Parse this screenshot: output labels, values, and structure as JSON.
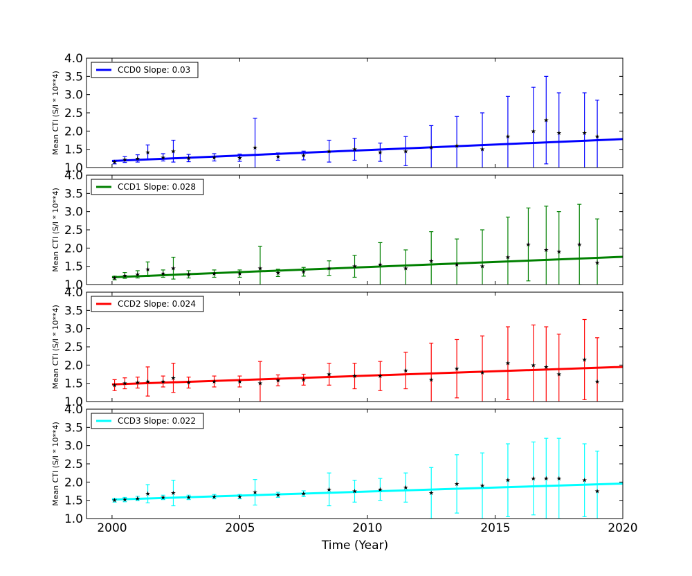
{
  "figure": {
    "xlabel": "Time (Year)",
    "xticks": [
      "2000",
      "2005",
      "2010",
      "2015",
      "2020"
    ]
  },
  "chart_data": [
    {
      "type": "scatter",
      "id": "ccd0",
      "ylabel": "Mean CTI (S/I * 10**4)",
      "xlim": [
        1999,
        2020
      ],
      "ylim": [
        1.0,
        4.0
      ],
      "yticks": [
        "1.0",
        "1.5",
        "2.0",
        "2.5",
        "3.0",
        "3.5",
        "4.0"
      ],
      "legend": {
        "placement": "top-left",
        "label": "CCD0 Slope: 0.03"
      },
      "color": "#0000ff",
      "fit": {
        "slope": 0.03,
        "x": [
          2000,
          2020
        ],
        "y": [
          1.18,
          1.78
        ]
      },
      "points": [
        {
          "x": 2000.1,
          "y": 1.15,
          "err": 0.05
        },
        {
          "x": 2000.5,
          "y": 1.22,
          "err": 0.08
        },
        {
          "x": 2001.0,
          "y": 1.25,
          "err": 0.1
        },
        {
          "x": 2001.4,
          "y": 1.42,
          "err": 0.2
        },
        {
          "x": 2002.0,
          "y": 1.28,
          "err": 0.1
        },
        {
          "x": 2002.4,
          "y": 1.45,
          "err": 0.3
        },
        {
          "x": 2003.0,
          "y": 1.26,
          "err": 0.1
        },
        {
          "x": 2004.0,
          "y": 1.28,
          "err": 0.1
        },
        {
          "x": 2005.0,
          "y": 1.27,
          "err": 0.1
        },
        {
          "x": 2005.6,
          "y": 1.55,
          "err": 0.8
        },
        {
          "x": 2006.5,
          "y": 1.3,
          "err": 0.1
        },
        {
          "x": 2007.5,
          "y": 1.33,
          "err": 0.12
        },
        {
          "x": 2008.5,
          "y": 1.45,
          "err": 0.3
        },
        {
          "x": 2009.5,
          "y": 1.5,
          "err": 0.3
        },
        {
          "x": 2010.5,
          "y": 1.42,
          "err": 0.25
        },
        {
          "x": 2011.5,
          "y": 1.45,
          "err": 0.4
        },
        {
          "x": 2012.5,
          "y": 1.55,
          "err": 0.6
        },
        {
          "x": 2013.5,
          "y": 1.6,
          "err": 0.8
        },
        {
          "x": 2014.5,
          "y": 1.5,
          "err": 1.0
        },
        {
          "x": 2015.5,
          "y": 1.85,
          "err": 1.1
        },
        {
          "x": 2016.5,
          "y": 2.0,
          "err": 1.2
        },
        {
          "x": 2017.0,
          "y": 2.3,
          "err": 1.2
        },
        {
          "x": 2017.5,
          "y": 1.95,
          "err": 1.1
        },
        {
          "x": 2018.5,
          "y": 1.95,
          "err": 1.1
        },
        {
          "x": 2019.0,
          "y": 1.85,
          "err": 1.0
        }
      ]
    },
    {
      "type": "scatter",
      "id": "ccd1",
      "ylabel": "Mean CTI (S/I * 10**4)",
      "xlim": [
        1999,
        2020
      ],
      "ylim": [
        1.0,
        4.0
      ],
      "yticks": [
        "1.0",
        "1.5",
        "2.0",
        "2.5",
        "3.0",
        "3.5",
        "4.0"
      ],
      "legend": {
        "placement": "top-left",
        "label": "CCD1 Slope: 0.028"
      },
      "color": "#008000",
      "fit": {
        "slope": 0.028,
        "x": [
          2000,
          2020
        ],
        "y": [
          1.2,
          1.76
        ]
      },
      "points": [
        {
          "x": 2000.1,
          "y": 1.18,
          "err": 0.05
        },
        {
          "x": 2000.5,
          "y": 1.25,
          "err": 0.08
        },
        {
          "x": 2001.0,
          "y": 1.28,
          "err": 0.1
        },
        {
          "x": 2001.4,
          "y": 1.42,
          "err": 0.2
        },
        {
          "x": 2002.0,
          "y": 1.3,
          "err": 0.1
        },
        {
          "x": 2002.4,
          "y": 1.45,
          "err": 0.3
        },
        {
          "x": 2003.0,
          "y": 1.28,
          "err": 0.1
        },
        {
          "x": 2004.0,
          "y": 1.3,
          "err": 0.1
        },
        {
          "x": 2005.0,
          "y": 1.3,
          "err": 0.1
        },
        {
          "x": 2005.8,
          "y": 1.45,
          "err": 0.6
        },
        {
          "x": 2006.5,
          "y": 1.32,
          "err": 0.1
        },
        {
          "x": 2007.5,
          "y": 1.35,
          "err": 0.12
        },
        {
          "x": 2008.5,
          "y": 1.45,
          "err": 0.2
        },
        {
          "x": 2009.5,
          "y": 1.5,
          "err": 0.3
        },
        {
          "x": 2010.5,
          "y": 1.55,
          "err": 0.6
        },
        {
          "x": 2011.5,
          "y": 1.45,
          "err": 0.5
        },
        {
          "x": 2012.5,
          "y": 1.65,
          "err": 0.8
        },
        {
          "x": 2013.5,
          "y": 1.55,
          "err": 0.7
        },
        {
          "x": 2014.5,
          "y": 1.5,
          "err": 1.0
        },
        {
          "x": 2015.5,
          "y": 1.75,
          "err": 1.1
        },
        {
          "x": 2016.3,
          "y": 2.1,
          "err": 1.0
        },
        {
          "x": 2017.0,
          "y": 1.95,
          "err": 1.2
        },
        {
          "x": 2017.5,
          "y": 1.9,
          "err": 1.1
        },
        {
          "x": 2018.3,
          "y": 2.1,
          "err": 1.1
        },
        {
          "x": 2019.0,
          "y": 1.6,
          "err": 1.2
        }
      ]
    },
    {
      "type": "scatter",
      "id": "ccd2",
      "ylabel": "Mean CTI (S/I * 10**4)",
      "xlim": [
        1999,
        2020
      ],
      "ylim": [
        1.0,
        4.0
      ],
      "yticks": [
        "1.0",
        "1.5",
        "2.0",
        "2.5",
        "3.0",
        "3.5",
        "4.0"
      ],
      "legend": {
        "placement": "top-left",
        "label": "CCD2 Slope: 0.024"
      },
      "color": "#ff0000",
      "fit": {
        "slope": 0.024,
        "x": [
          2000,
          2020
        ],
        "y": [
          1.47,
          1.95
        ]
      },
      "points": [
        {
          "x": 2000.1,
          "y": 1.45,
          "err": 0.15
        },
        {
          "x": 2000.5,
          "y": 1.5,
          "err": 0.15
        },
        {
          "x": 2001.0,
          "y": 1.52,
          "err": 0.15
        },
        {
          "x": 2001.4,
          "y": 1.55,
          "err": 0.4
        },
        {
          "x": 2002.0,
          "y": 1.55,
          "err": 0.15
        },
        {
          "x": 2002.4,
          "y": 1.65,
          "err": 0.4
        },
        {
          "x": 2003.0,
          "y": 1.52,
          "err": 0.15
        },
        {
          "x": 2004.0,
          "y": 1.55,
          "err": 0.15
        },
        {
          "x": 2005.0,
          "y": 1.55,
          "err": 0.15
        },
        {
          "x": 2005.8,
          "y": 1.5,
          "err": 0.6
        },
        {
          "x": 2006.5,
          "y": 1.58,
          "err": 0.15
        },
        {
          "x": 2007.5,
          "y": 1.6,
          "err": 0.15
        },
        {
          "x": 2008.5,
          "y": 1.75,
          "err": 0.3
        },
        {
          "x": 2009.5,
          "y": 1.7,
          "err": 0.35
        },
        {
          "x": 2010.5,
          "y": 1.7,
          "err": 0.4
        },
        {
          "x": 2011.5,
          "y": 1.85,
          "err": 0.5
        },
        {
          "x": 2012.5,
          "y": 1.6,
          "err": 1.0
        },
        {
          "x": 2013.5,
          "y": 1.9,
          "err": 0.8
        },
        {
          "x": 2014.5,
          "y": 1.8,
          "err": 1.0
        },
        {
          "x": 2015.5,
          "y": 2.05,
          "err": 1.0
        },
        {
          "x": 2016.5,
          "y": 2.0,
          "err": 1.1
        },
        {
          "x": 2017.0,
          "y": 1.95,
          "err": 1.1
        },
        {
          "x": 2017.5,
          "y": 1.75,
          "err": 1.1
        },
        {
          "x": 2018.5,
          "y": 2.15,
          "err": 1.1
        },
        {
          "x": 2019.0,
          "y": 1.55,
          "err": 1.2
        }
      ]
    },
    {
      "type": "scatter",
      "id": "ccd3",
      "ylabel": "Mean CTI (S/I * 10**4)",
      "xlim": [
        1999,
        2020
      ],
      "ylim": [
        1.0,
        4.0
      ],
      "yticks": [
        "1.0",
        "1.5",
        "2.0",
        "2.5",
        "3.0",
        "3.5",
        "4.0"
      ],
      "legend": {
        "placement": "top-left",
        "label": "CCD3 Slope: 0.022"
      },
      "color": "#00ffff",
      "fit": {
        "slope": 0.022,
        "x": [
          2000,
          2020
        ],
        "y": [
          1.52,
          1.96
        ]
      },
      "points": [
        {
          "x": 2000.1,
          "y": 1.5,
          "err": 0.05
        },
        {
          "x": 2000.5,
          "y": 1.52,
          "err": 0.06
        },
        {
          "x": 2001.0,
          "y": 1.55,
          "err": 0.06
        },
        {
          "x": 2001.4,
          "y": 1.68,
          "err": 0.25
        },
        {
          "x": 2002.0,
          "y": 1.58,
          "err": 0.06
        },
        {
          "x": 2002.4,
          "y": 1.7,
          "err": 0.35
        },
        {
          "x": 2003.0,
          "y": 1.58,
          "err": 0.06
        },
        {
          "x": 2004.0,
          "y": 1.6,
          "err": 0.06
        },
        {
          "x": 2005.0,
          "y": 1.6,
          "err": 0.06
        },
        {
          "x": 2005.6,
          "y": 1.72,
          "err": 0.35
        },
        {
          "x": 2006.5,
          "y": 1.65,
          "err": 0.07
        },
        {
          "x": 2007.5,
          "y": 1.68,
          "err": 0.08
        },
        {
          "x": 2008.5,
          "y": 1.8,
          "err": 0.45
        },
        {
          "x": 2009.5,
          "y": 1.75,
          "err": 0.3
        },
        {
          "x": 2010.5,
          "y": 1.8,
          "err": 0.3
        },
        {
          "x": 2011.5,
          "y": 1.85,
          "err": 0.4
        },
        {
          "x": 2012.5,
          "y": 1.7,
          "err": 0.7
        },
        {
          "x": 2013.5,
          "y": 1.95,
          "err": 0.8
        },
        {
          "x": 2014.5,
          "y": 1.9,
          "err": 0.9
        },
        {
          "x": 2015.5,
          "y": 2.05,
          "err": 1.0
        },
        {
          "x": 2016.5,
          "y": 2.1,
          "err": 1.0
        },
        {
          "x": 2017.0,
          "y": 2.1,
          "err": 1.1
        },
        {
          "x": 2017.5,
          "y": 2.1,
          "err": 1.1
        },
        {
          "x": 2018.5,
          "y": 2.05,
          "err": 1.0
        },
        {
          "x": 2019.0,
          "y": 1.75,
          "err": 1.1
        }
      ]
    }
  ]
}
